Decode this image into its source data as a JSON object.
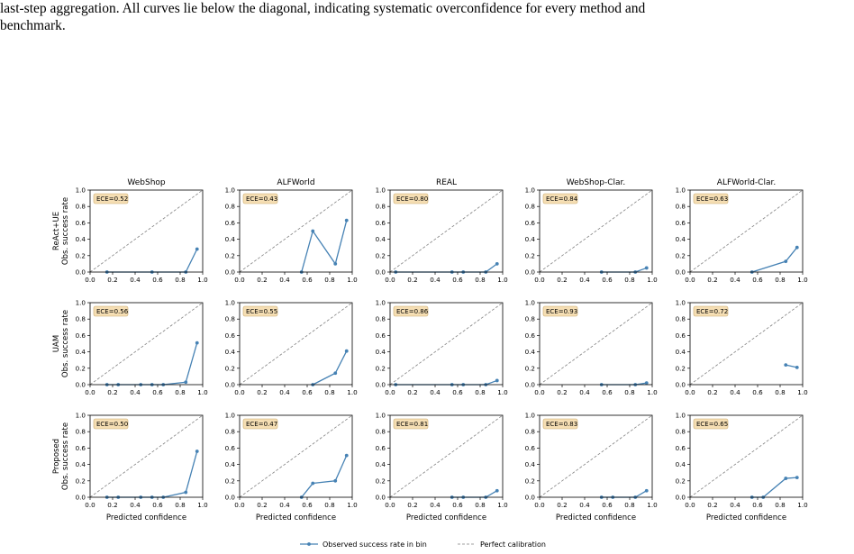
{
  "caption": {
    "line1": "last-step aggregation.  All curves lie below the diagonal, indicating systematic overconfidence for every method and",
    "line2": "benchmark."
  },
  "colors": {
    "series": "#4682b4",
    "diagonal": "#808080",
    "ece_box_fill": "#f5deb3",
    "ece_box_edge": "#c9a96e"
  },
  "legend": {
    "observed": "Observed success rate in bin",
    "perfect": "Perfect calibration"
  },
  "chart_data": {
    "type": "line",
    "grid": false,
    "legend_position": "bottom-center",
    "xlim": [
      0.0,
      1.0
    ],
    "ylim": [
      0.0,
      1.0
    ],
    "xticks": [
      "0.0",
      "0.2",
      "0.4",
      "0.6",
      "0.8",
      "1.0"
    ],
    "yticks": [
      "0.0",
      "0.2",
      "0.4",
      "0.6",
      "0.8",
      "1.0"
    ],
    "xlabel": "Predicted confidence",
    "columns": [
      "WebShop",
      "ALFWorld",
      "REAL",
      "WebShop-Clar.",
      "ALFWorld-Clar."
    ],
    "rows": [
      {
        "method": "ReAct+UE",
        "ylabel": "Obs. success rate"
      },
      {
        "method": "UAM",
        "ylabel": "Obs. success rate"
      },
      {
        "method": "Proposed",
        "ylabel": "Obs. success rate"
      }
    ],
    "panels": [
      [
        {
          "ece": "ECE=0.52",
          "x": [
            0.15,
            0.55,
            0.85,
            0.95
          ],
          "y": [
            0.0,
            0.0,
            0.0,
            0.28
          ]
        },
        {
          "ece": "ECE=0.43",
          "x": [
            0.55,
            0.65,
            0.85,
            0.95
          ],
          "y": [
            0.0,
            0.5,
            0.1,
            0.63
          ]
        },
        {
          "ece": "ECE=0.80",
          "x": [
            0.05,
            0.55,
            0.65,
            0.85,
            0.95
          ],
          "y": [
            0.0,
            0.0,
            0.0,
            0.0,
            0.1
          ]
        },
        {
          "ece": "ECE=0.84",
          "x": [
            0.55,
            0.85,
            0.95
          ],
          "y": [
            0.0,
            0.0,
            0.05
          ]
        },
        {
          "ece": "ECE=0.63",
          "x": [
            0.55,
            0.85,
            0.95
          ],
          "y": [
            0.0,
            0.13,
            0.3
          ]
        }
      ],
      [
        {
          "ece": "ECE=0.56",
          "x": [
            0.15,
            0.25,
            0.45,
            0.55,
            0.65,
            0.85,
            0.95
          ],
          "y": [
            0.0,
            0.0,
            0.0,
            0.0,
            0.0,
            0.03,
            0.51
          ]
        },
        {
          "ece": "ECE=0.55",
          "x": [
            0.65,
            0.85,
            0.95
          ],
          "y": [
            0.0,
            0.14,
            0.41
          ]
        },
        {
          "ece": "ECE=0.86",
          "x": [
            0.05,
            0.55,
            0.65,
            0.85,
            0.95
          ],
          "y": [
            0.0,
            0.0,
            0.0,
            0.0,
            0.05
          ]
        },
        {
          "ece": "ECE=0.93",
          "x": [
            0.55,
            0.85,
            0.95
          ],
          "y": [
            0.0,
            0.0,
            0.02
          ]
        },
        {
          "ece": "ECE=0.72",
          "x": [
            0.85,
            0.95
          ],
          "y": [
            0.24,
            0.21
          ]
        }
      ],
      [
        {
          "ece": "ECE=0.50",
          "x": [
            0.15,
            0.25,
            0.45,
            0.55,
            0.65,
            0.85,
            0.95
          ],
          "y": [
            0.0,
            0.0,
            0.0,
            0.0,
            0.0,
            0.06,
            0.56
          ]
        },
        {
          "ece": "ECE=0.47",
          "x": [
            0.55,
            0.65,
            0.85,
            0.95
          ],
          "y": [
            0.0,
            0.17,
            0.2,
            0.51
          ]
        },
        {
          "ece": "ECE=0.81",
          "x": [
            0.55,
            0.65,
            0.85,
            0.95
          ],
          "y": [
            0.0,
            0.0,
            0.0,
            0.08
          ]
        },
        {
          "ece": "ECE=0.83",
          "x": [
            0.55,
            0.65,
            0.85,
            0.95
          ],
          "y": [
            0.0,
            0.0,
            0.0,
            0.08
          ]
        },
        {
          "ece": "ECE=0.65",
          "x": [
            0.55,
            0.65,
            0.85,
            0.95
          ],
          "y": [
            0.0,
            0.0,
            0.23,
            0.24
          ]
        }
      ]
    ]
  }
}
